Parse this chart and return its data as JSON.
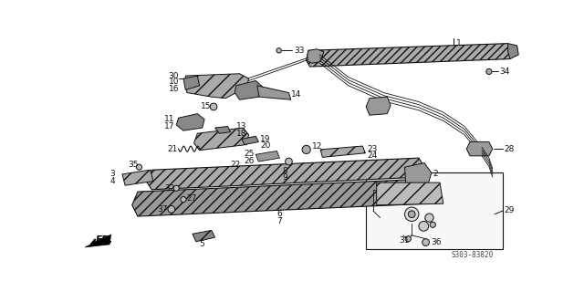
{
  "bg_color": "#ffffff",
  "line_color": "#111111",
  "gray_dark": "#555555",
  "gray_mid": "#888888",
  "gray_light": "#bbbbbb",
  "hatch_color": "#444444",
  "watermark": "S303-83820",
  "fs": 6.5,
  "fs_small": 5.5
}
